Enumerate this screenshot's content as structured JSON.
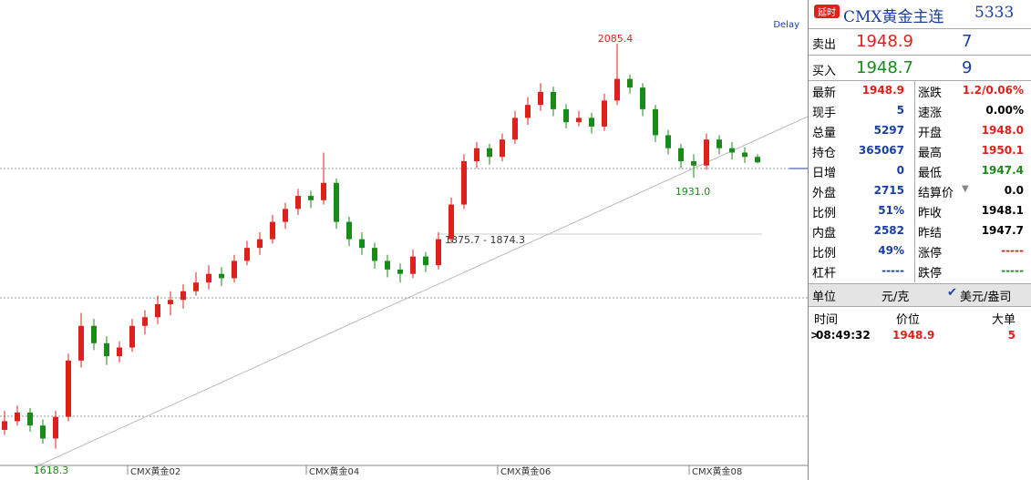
{
  "chart_data": {
    "type": "candlestick",
    "categories": [
      null,
      null,
      null,
      null,
      null,
      null,
      null,
      null,
      null,
      null,
      "CMX黄金02",
      null,
      null,
      null,
      null,
      null,
      null,
      null,
      null,
      null,
      null,
      null,
      null,
      null,
      "CMX黄金04",
      null,
      null,
      null,
      null,
      null,
      null,
      null,
      null,
      null,
      null,
      null,
      null,
      null,
      null,
      "CMX黄金06",
      null,
      null,
      null,
      null,
      null,
      null,
      null,
      null,
      null,
      null,
      null,
      null,
      null,
      null,
      "CMX黄金08",
      null,
      null,
      null,
      null,
      null
    ],
    "candles": [
      [
        1640,
        1662,
        1634,
        1650
      ],
      [
        1650,
        1668,
        1645,
        1660
      ],
      [
        1660,
        1665,
        1638,
        1645
      ],
      [
        1645,
        1652,
        1624,
        1630
      ],
      [
        1630,
        1662,
        1618.3,
        1655
      ],
      [
        1655,
        1728,
        1650,
        1720
      ],
      [
        1720,
        1775,
        1712,
        1760
      ],
      [
        1760,
        1768,
        1732,
        1740
      ],
      [
        1740,
        1748,
        1715,
        1725
      ],
      [
        1725,
        1742,
        1718,
        1735
      ],
      [
        1735,
        1768,
        1730,
        1760
      ],
      [
        1760,
        1778,
        1750,
        1770
      ],
      [
        1770,
        1795,
        1762,
        1785
      ],
      [
        1785,
        1800,
        1772,
        1790
      ],
      [
        1790,
        1808,
        1780,
        1800
      ],
      [
        1800,
        1822,
        1795,
        1810
      ],
      [
        1810,
        1830,
        1802,
        1820
      ],
      [
        1820,
        1828,
        1806,
        1815
      ],
      [
        1815,
        1842,
        1810,
        1835
      ],
      [
        1835,
        1858,
        1830,
        1850
      ],
      [
        1850,
        1868,
        1842,
        1860
      ],
      [
        1860,
        1888,
        1855,
        1880
      ],
      [
        1880,
        1902,
        1872,
        1895
      ],
      [
        1895,
        1918,
        1888,
        1910
      ],
      [
        1910,
        1916,
        1896,
        1905
      ],
      [
        1905,
        1960,
        1900,
        1925
      ],
      [
        1925,
        1930,
        1872,
        1880
      ],
      [
        1880,
        1886,
        1852,
        1860
      ],
      [
        1860,
        1868,
        1842,
        1850
      ],
      [
        1850,
        1856,
        1826,
        1835
      ],
      [
        1835,
        1842,
        1816,
        1825
      ],
      [
        1825,
        1832,
        1810,
        1820
      ],
      [
        1820,
        1848,
        1815,
        1840
      ],
      [
        1840,
        1845,
        1822,
        1830
      ],
      [
        1830,
        1868,
        1825,
        1860
      ],
      [
        1860,
        1908,
        1855,
        1900
      ],
      [
        1900,
        1958,
        1895,
        1950
      ],
      [
        1950,
        1972,
        1942,
        1965
      ],
      [
        1965,
        1970,
        1946,
        1955
      ],
      [
        1955,
        1982,
        1950,
        1975
      ],
      [
        1975,
        2008,
        1970,
        2000
      ],
      [
        2000,
        2024,
        1992,
        2015
      ],
      [
        2015,
        2040,
        2008,
        2030
      ],
      [
        2030,
        2036,
        2002,
        2010
      ],
      [
        2010,
        2016,
        1988,
        1995
      ],
      [
        1995,
        2008,
        1990,
        2000
      ],
      [
        2000,
        2006,
        1982,
        1990
      ],
      [
        1990,
        2028,
        1985,
        2020
      ],
      [
        2020,
        2085.4,
        2015,
        2045
      ],
      [
        2045,
        2050,
        2028,
        2035
      ],
      [
        2035,
        2040,
        2002,
        2010
      ],
      [
        2010,
        2015,
        1972,
        1980
      ],
      [
        1980,
        1986,
        1958,
        1965
      ],
      [
        1965,
        1970,
        1942,
        1950
      ],
      [
        1950,
        1958,
        1931.0,
        1945
      ],
      [
        1945,
        1982,
        1940,
        1975
      ],
      [
        1975,
        1980,
        1958,
        1965
      ],
      [
        1965,
        1972,
        1952,
        1960
      ],
      [
        1960,
        1966,
        1948,
        1955
      ],
      [
        1955,
        1958,
        1947.4,
        1948.7
      ]
    ],
    "up_color": "#e0201c",
    "down_color": "#1a8a1a",
    "ylim": [
      1600,
      2115
    ],
    "annotations": {
      "high": "2085.4",
      "low": "1618.3",
      "recent_low": "1931.0",
      "range": "1875.7 - 1874.3",
      "delay": "Delay"
    }
  },
  "quote": {
    "badge": "延时",
    "name": "CMX黄金主连",
    "code": "5333",
    "sell": {
      "label": "卖出",
      "price": "1948.9",
      "volume": "7"
    },
    "buy": {
      "label": "买入",
      "price": "1948.7",
      "volume": "9"
    },
    "stats": [
      [
        "最新",
        "1948.9",
        "涨跌",
        "1.2/0.06%"
      ],
      [
        "现手",
        "5",
        "速涨",
        "0.00%"
      ],
      [
        "总量",
        "5297",
        "开盘",
        "1948.0"
      ],
      [
        "持仓",
        "365067",
        "最高",
        "1950.1"
      ],
      [
        "日增",
        "0",
        "最低",
        "1947.4"
      ],
      [
        "外盘",
        "2715",
        "结算价",
        "0.0"
      ],
      [
        "比例",
        "51%",
        "昨收",
        "1948.1"
      ],
      [
        "内盘",
        "2582",
        "昨结",
        "1947.7"
      ],
      [
        "比例",
        "49%",
        "涨停",
        "-----"
      ],
      [
        "杠杆",
        "-----",
        "跌停",
        "-----"
      ]
    ],
    "unit": {
      "label": "单位",
      "cny": "元/克",
      "usd": "美元/盎司"
    },
    "trades": {
      "headers": [
        "时间",
        "价位",
        "大单"
      ],
      "rows": [
        [
          "08:49:32",
          "1948.9",
          "5"
        ]
      ]
    }
  }
}
